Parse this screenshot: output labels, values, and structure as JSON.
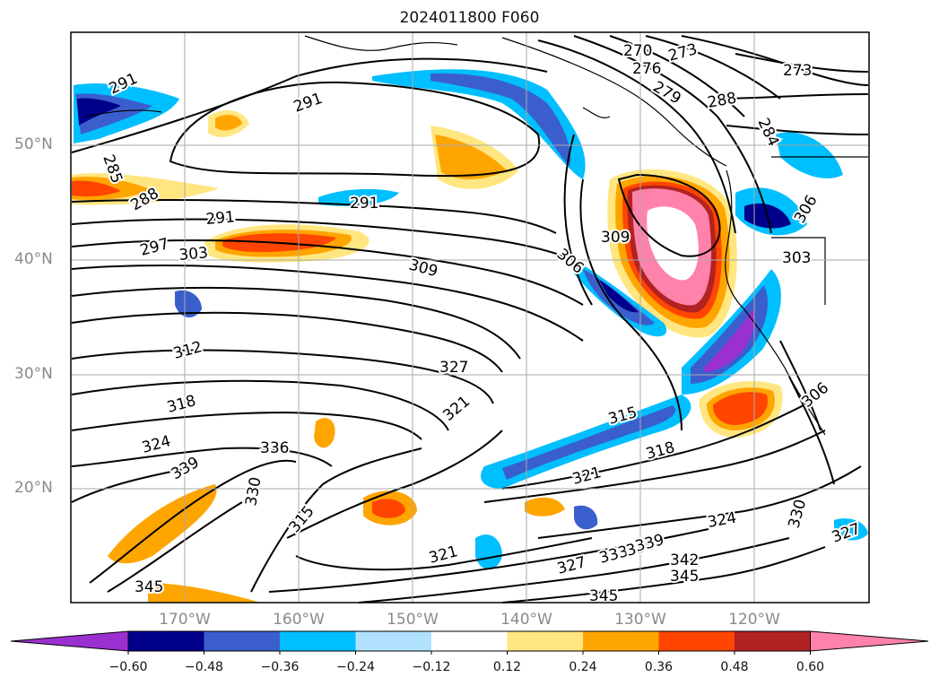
{
  "title": "2024011800 F060",
  "map": {
    "lat_labels": [
      "50°N",
      "40°N",
      "30°N",
      "20°N"
    ],
    "lon_labels": [
      "170°W",
      "160°W",
      "150°W",
      "140°W",
      "130°W",
      "120°W"
    ],
    "contour_labels": [
      "291",
      "291",
      "291",
      "291",
      "285",
      "288",
      "297",
      "303",
      "309",
      "306",
      "309",
      "312",
      "318",
      "324",
      "336",
      "339",
      "330",
      "327",
      "321",
      "315",
      "315",
      "318",
      "321",
      "321",
      "327",
      "333",
      "336",
      "339",
      "342",
      "345",
      "345",
      "345",
      "324",
      "330",
      "327",
      "306",
      "306",
      "303",
      "270",
      "276",
      "273",
      "273",
      "279",
      "288",
      "284"
    ]
  },
  "colorbar": {
    "ticks": [
      "−0.60",
      "−0.48",
      "−0.36",
      "−0.24",
      "−0.12",
      "0.12",
      "0.24",
      "0.36",
      "0.48",
      "0.60"
    ],
    "colors": [
      "#9b30d0",
      "#00008b",
      "#3a5fcd",
      "#00bfff",
      "#b0e2ff",
      "#ffffff",
      "#ffe680",
      "#ffa500",
      "#ff4500",
      "#b22222",
      "#ff82ab"
    ]
  }
}
